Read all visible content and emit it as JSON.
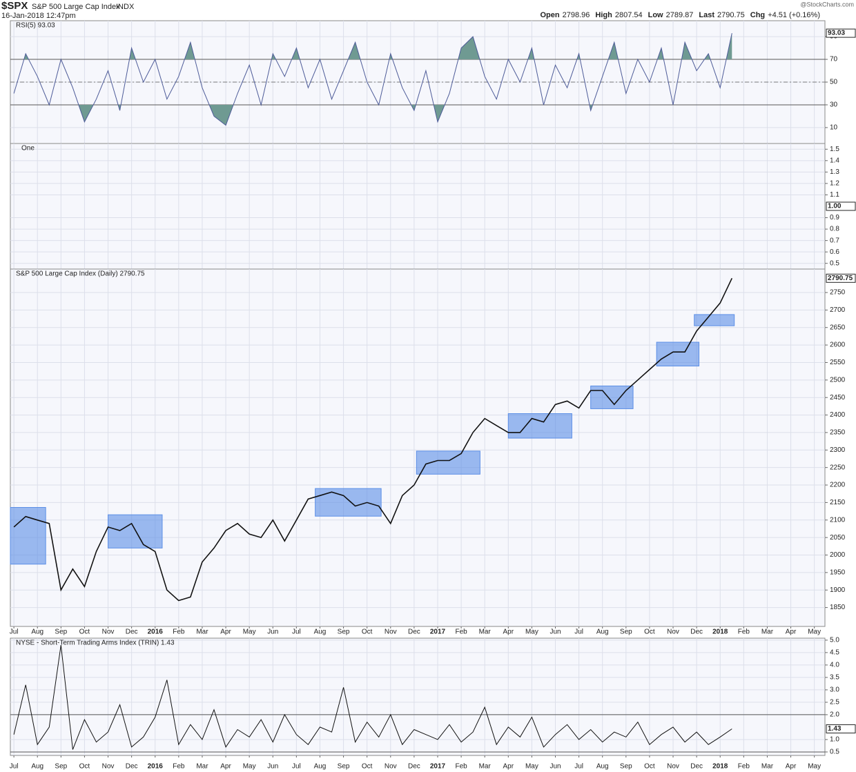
{
  "header": {
    "symbol": "$SPX",
    "name": "S&P 500 Large Cap Index",
    "exchange": "INDX",
    "timestamp": "16-Jan-2018 12:47pm",
    "quote": [
      {
        "label": "Open",
        "value": "2798.96"
      },
      {
        "label": "High",
        "value": "2807.54"
      },
      {
        "label": "Low",
        "value": "2789.87"
      },
      {
        "label": "Last",
        "value": "2790.75"
      },
      {
        "label": "Chg",
        "value": "+4.51 (+0.16%)"
      }
    ],
    "source": "@StockCharts.com"
  },
  "chart_data": [
    {
      "type": "rsi",
      "title": "RSI(5) 93.03",
      "color": "#4d5b98",
      "fill_color": "#6f9a92",
      "x": [
        0,
        0.5,
        1,
        1.5,
        2,
        2.5,
        3,
        3.5,
        4,
        4.5,
        5,
        5.5,
        6,
        6.5,
        7,
        7.5,
        8,
        8.5,
        9,
        9.5,
        10,
        10.5,
        11,
        11.5,
        12,
        12.5,
        13,
        13.5,
        14,
        14.5,
        15,
        15.5,
        16,
        16.5,
        17,
        17.5,
        18,
        18.5,
        19,
        19.5,
        20,
        20.5,
        21,
        21.5,
        22,
        22.5,
        23,
        23.5,
        24,
        24.5,
        25,
        25.5,
        26,
        26.5,
        27,
        27.5,
        28,
        28.5,
        29,
        29.5,
        30,
        30.5
      ],
      "values": [
        40,
        75,
        55,
        30,
        70,
        45,
        15,
        35,
        60,
        25,
        80,
        50,
        70,
        35,
        55,
        85,
        45,
        20,
        12,
        40,
        65,
        30,
        75,
        55,
        80,
        45,
        70,
        35,
        60,
        85,
        50,
        30,
        75,
        45,
        25,
        60,
        15,
        40,
        80,
        90,
        55,
        35,
        70,
        50,
        80,
        30,
        65,
        45,
        75,
        25,
        55,
        85,
        40,
        70,
        50,
        80,
        30,
        85,
        60,
        75,
        45,
        93.03
      ],
      "ylim": [
        -4,
        104
      ],
      "yticks": [
        10,
        30,
        50,
        70,
        90
      ],
      "levels": [
        30,
        70
      ],
      "midline": 50,
      "last_value": 93.03
    },
    {
      "type": "flat",
      "title": "One",
      "ylim": [
        0.45,
        1.55
      ],
      "yticks": [
        0.5,
        0.6,
        0.7,
        0.8,
        0.9,
        1.1,
        1.2,
        1.3,
        1.4,
        1.5
      ],
      "last_value": {
        "value": 1,
        "label": "1.00"
      }
    },
    {
      "type": "price",
      "title": "S&P 500 Large Cap Index (Daily) 2790.75",
      "color": "#111111",
      "box_color": "#5b8ee6",
      "x": [
        0,
        0.5,
        1,
        1.5,
        2,
        2.5,
        3,
        3.5,
        4,
        4.5,
        5,
        5.5,
        6,
        6.5,
        7,
        7.5,
        8,
        8.5,
        9,
        9.5,
        10,
        10.5,
        11,
        11.5,
        12,
        12.5,
        13,
        13.5,
        14,
        14.5,
        15,
        15.5,
        16,
        16.5,
        17,
        17.5,
        18,
        18.5,
        19,
        19.5,
        20,
        20.5,
        21,
        21.5,
        22,
        22.5,
        23,
        23.5,
        24,
        24.5,
        25,
        25.5,
        26,
        26.5,
        27,
        27.5,
        28,
        28.5,
        29,
        29.5,
        30,
        30.5
      ],
      "values": [
        2080,
        2110,
        2100,
        2090,
        1900,
        1960,
        1910,
        2010,
        2080,
        2070,
        2090,
        2030,
        2010,
        1900,
        1870,
        1880,
        1980,
        2020,
        2070,
        2090,
        2060,
        2050,
        2100,
        2040,
        2100,
        2160,
        2170,
        2180,
        2170,
        2140,
        2150,
        2140,
        2090,
        2170,
        2200,
        2260,
        2270,
        2270,
        2290,
        2350,
        2390,
        2370,
        2350,
        2350,
        2390,
        2380,
        2430,
        2440,
        2420,
        2470,
        2470,
        2430,
        2470,
        2500,
        2530,
        2560,
        2580,
        2580,
        2640,
        2680,
        2720,
        2790.75
      ],
      "boxes": [
        {
          "x": [
            -0.6,
            1.35
          ],
          "y": [
            1974,
            2136
          ]
        },
        {
          "x": [
            4.0,
            6.3
          ],
          "y": [
            2020,
            2115
          ]
        },
        {
          "x": [
            12.8,
            15.6
          ],
          "y": [
            2111,
            2190
          ]
        },
        {
          "x": [
            17.1,
            19.8
          ],
          "y": [
            2231,
            2297
          ]
        },
        {
          "x": [
            21.0,
            23.7
          ],
          "y": [
            2334,
            2404
          ]
        },
        {
          "x": [
            24.5,
            26.3
          ],
          "y": [
            2418,
            2483
          ]
        },
        {
          "x": [
            27.3,
            29.1
          ],
          "y": [
            2540,
            2608
          ]
        },
        {
          "x": [
            28.9,
            30.6
          ],
          "y": [
            2655,
            2687
          ]
        }
      ],
      "xlim": [
        -0.15,
        34.45
      ],
      "xticks": [
        {
          "value": 0,
          "label": "Jul"
        },
        {
          "value": 1,
          "label": "Aug"
        },
        {
          "value": 2,
          "label": "Sep"
        },
        {
          "value": 3,
          "label": "Oct"
        },
        {
          "value": 4,
          "label": "Nov"
        },
        {
          "value": 5,
          "label": "Dec"
        },
        {
          "value": 6,
          "label": "2016"
        },
        {
          "value": 7,
          "label": "Feb"
        },
        {
          "value": 8,
          "label": "Mar"
        },
        {
          "value": 9,
          "label": "Apr"
        },
        {
          "value": 10,
          "label": "May"
        },
        {
          "value": 11,
          "label": "Jun"
        },
        {
          "value": 12,
          "label": "Jul"
        },
        {
          "value": 13,
          "label": "Aug"
        },
        {
          "value": 14,
          "label": "Sep"
        },
        {
          "value": 15,
          "label": "Oct"
        },
        {
          "value": 16,
          "label": "Nov"
        },
        {
          "value": 17,
          "label": "Dec"
        },
        {
          "value": 18,
          "label": "2017"
        },
        {
          "value": 19,
          "label": "Feb"
        },
        {
          "value": 20,
          "label": "Mar"
        },
        {
          "value": 21,
          "label": "Apr"
        },
        {
          "value": 22,
          "label": "May"
        },
        {
          "value": 23,
          "label": "Jun"
        },
        {
          "value": 24,
          "label": "Jul"
        },
        {
          "value": 25,
          "label": "Aug"
        },
        {
          "value": 26,
          "label": "Sep"
        },
        {
          "value": 27,
          "label": "Oct"
        },
        {
          "value": 28,
          "label": "Nov"
        },
        {
          "value": 29,
          "label": "Dec"
        },
        {
          "value": 30,
          "label": "2018"
        },
        {
          "value": 31,
          "label": "Feb"
        },
        {
          "value": 32,
          "label": "Mar"
        },
        {
          "value": 33,
          "label": "Apr"
        },
        {
          "value": 34,
          "label": "May"
        }
      ],
      "ylim": [
        1796,
        2817
      ],
      "yticks": [
        1850,
        1900,
        1950,
        2000,
        2050,
        2100,
        2150,
        2200,
        2250,
        2300,
        2350,
        2400,
        2450,
        2500,
        2550,
        2600,
        2650,
        2700,
        2750
      ],
      "last_value": 2790.75
    },
    {
      "type": "trin",
      "title": "NYSE - Short-Term Trading Arms Index (TRIN) 1.43",
      "color": "#111111",
      "x": [
        0,
        0.5,
        1,
        1.5,
        2,
        2.5,
        3,
        3.5,
        4,
        4.5,
        5,
        5.5,
        6,
        6.5,
        7,
        7.5,
        8,
        8.5,
        9,
        9.5,
        10,
        10.5,
        11,
        11.5,
        12,
        12.5,
        13,
        13.5,
        14,
        14.5,
        15,
        15.5,
        16,
        16.5,
        17,
        17.5,
        18,
        18.5,
        19,
        19.5,
        20,
        20.5,
        21,
        21.5,
        22,
        22.5,
        23,
        23.5,
        24,
        24.5,
        25,
        25.5,
        26,
        26.5,
        27,
        27.5,
        28,
        28.5,
        29,
        29.5,
        30,
        30.5
      ],
      "values": [
        1.2,
        3.2,
        0.8,
        1.5,
        4.8,
        0.6,
        1.8,
        0.9,
        1.3,
        2.4,
        0.7,
        1.1,
        1.9,
        3.4,
        0.8,
        1.6,
        1.0,
        2.2,
        0.7,
        1.4,
        1.1,
        1.8,
        0.9,
        2.0,
        1.2,
        0.8,
        1.5,
        1.3,
        3.1,
        0.9,
        1.7,
        1.1,
        2.0,
        0.8,
        1.4,
        1.2,
        1.0,
        1.6,
        0.9,
        1.3,
        2.3,
        0.8,
        1.5,
        1.1,
        1.9,
        0.7,
        1.2,
        1.6,
        1.0,
        1.4,
        0.9,
        1.3,
        1.1,
        1.7,
        0.8,
        1.2,
        1.5,
        0.9,
        1.3,
        0.8,
        1.1,
        1.43
      ],
      "xlim": [
        -0.15,
        34.45
      ],
      "xticks": [
        {
          "value": 0,
          "label": "Jul"
        },
        {
          "value": 1,
          "label": "Aug"
        },
        {
          "value": 2,
          "label": "Sep"
        },
        {
          "value": 3,
          "label": "Oct"
        },
        {
          "value": 4,
          "label": "Nov"
        },
        {
          "value": 5,
          "label": "Dec"
        },
        {
          "value": 6,
          "label": "2016"
        },
        {
          "value": 7,
          "label": "Feb"
        },
        {
          "value": 8,
          "label": "Mar"
        },
        {
          "value": 9,
          "label": "Apr"
        },
        {
          "value": 10,
          "label": "May"
        },
        {
          "value": 11,
          "label": "Jun"
        },
        {
          "value": 12,
          "label": "Jul"
        },
        {
          "value": 13,
          "label": "Aug"
        },
        {
          "value": 14,
          "label": "Sep"
        },
        {
          "value": 15,
          "label": "Oct"
        },
        {
          "value": 16,
          "label": "Nov"
        },
        {
          "value": 17,
          "label": "Dec"
        },
        {
          "value": 18,
          "label": "2017"
        },
        {
          "value": 19,
          "label": "Feb"
        },
        {
          "value": 20,
          "label": "Mar"
        },
        {
          "value": 21,
          "label": "Apr"
        },
        {
          "value": 22,
          "label": "May"
        },
        {
          "value": 23,
          "label": "Jun"
        },
        {
          "value": 24,
          "label": "Jul"
        },
        {
          "value": 25,
          "label": "Aug"
        },
        {
          "value": 26,
          "label": "Sep"
        },
        {
          "value": 27,
          "label": "Oct"
        },
        {
          "value": 28,
          "label": "Nov"
        },
        {
          "value": 29,
          "label": "Dec"
        },
        {
          "value": 30,
          "label": "2018"
        },
        {
          "value": 31,
          "label": "Feb"
        },
        {
          "value": 32,
          "label": "Mar"
        },
        {
          "value": 33,
          "label": "Apr"
        },
        {
          "value": 34,
          "label": "May"
        }
      ],
      "ylim": [
        0.36,
        5.08
      ],
      "yticks": [
        {
          "value": 0.5,
          "label": "0.5"
        },
        {
          "value": 1,
          "label": "1.0"
        },
        {
          "value": 2,
          "label": "2.0"
        },
        {
          "value": 2.5,
          "label": "2.5"
        },
        {
          "value": 3,
          "label": "3.0"
        },
        {
          "value": 3.5,
          "label": "3.5"
        },
        {
          "value": 4,
          "label": "4.0"
        },
        {
          "value": 4.5,
          "label": "4.5"
        },
        {
          "value": 5,
          "label": "5.0"
        }
      ],
      "levels": [
        0.5,
        2
      ],
      "last_value": 1.43
    }
  ]
}
